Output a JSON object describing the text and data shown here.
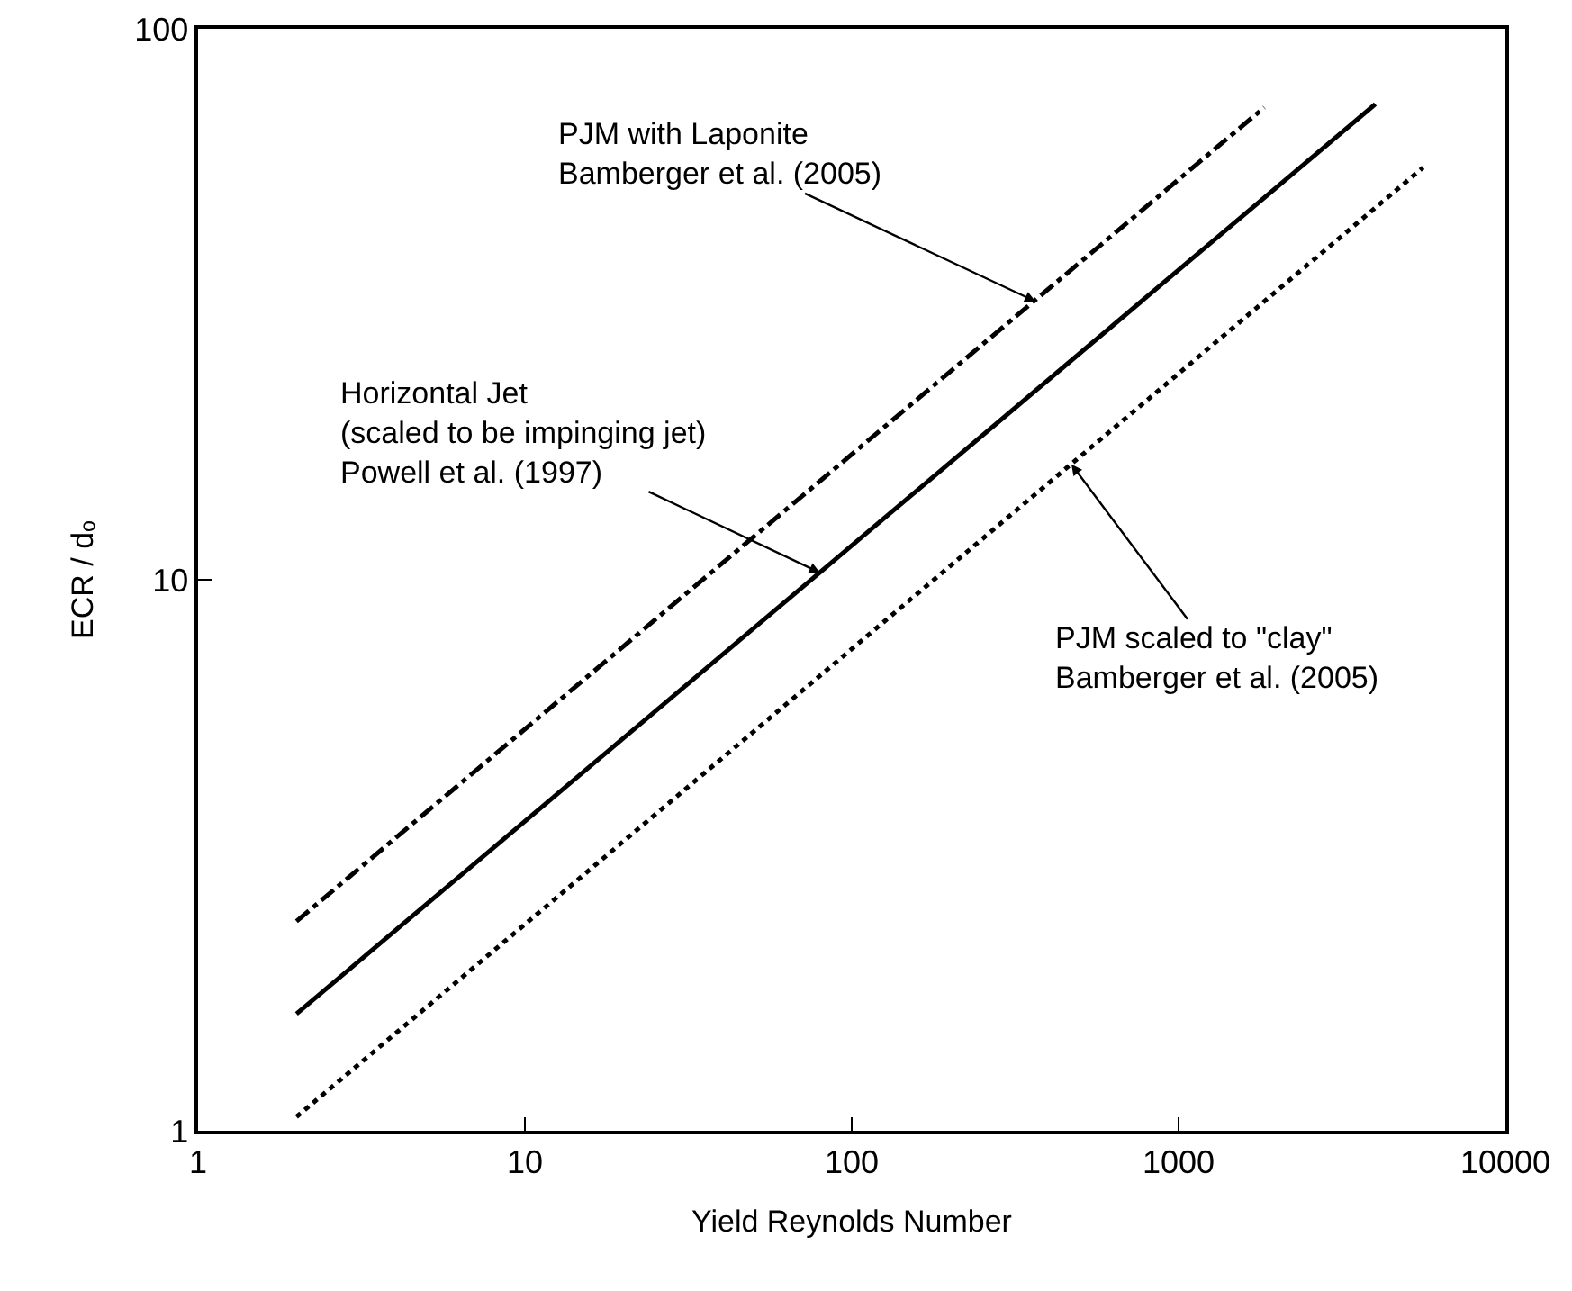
{
  "chart_data": {
    "type": "line",
    "xlabel": "Yield Reynolds Number",
    "ylabel": "ECR / dₒ",
    "log": "xy",
    "xlim": [
      1,
      10000
    ],
    "xticks": [
      1,
      10,
      100,
      1000,
      10000
    ],
    "ylim": [
      1,
      100
    ],
    "yticks": [
      1,
      10,
      100
    ],
    "grid": false,
    "marker": "none",
    "series": [
      {
        "color": "#000000",
        "line_style": "dashed",
        "x": [
          2,
          1830
        ],
        "values": [
          2.4,
          72
        ]
      },
      {
        "color": "#000000",
        "line_style": "solid",
        "x": [
          2,
          4000
        ],
        "values": [
          1.63,
          73
        ]
      },
      {
        "color": "#000000",
        "line_style": "dotted",
        "x": [
          2,
          5600
        ],
        "values": [
          1.06,
          56
        ]
      }
    ],
    "annotations": [
      {
        "text": "PJM with Laponite\nBamberger et al. (2005)",
        "x": 365,
        "y": 32
      },
      {
        "text": "Horizontal Jet\n(scaled to be impinging jet)\nPowell et al. (1997)",
        "x": 80,
        "y": 10.3
      },
      {
        "text": "PJM scaled to \"clay\"\nBamberger et al. (2005)",
        "x": 470,
        "y": 16.2
      }
    ]
  }
}
